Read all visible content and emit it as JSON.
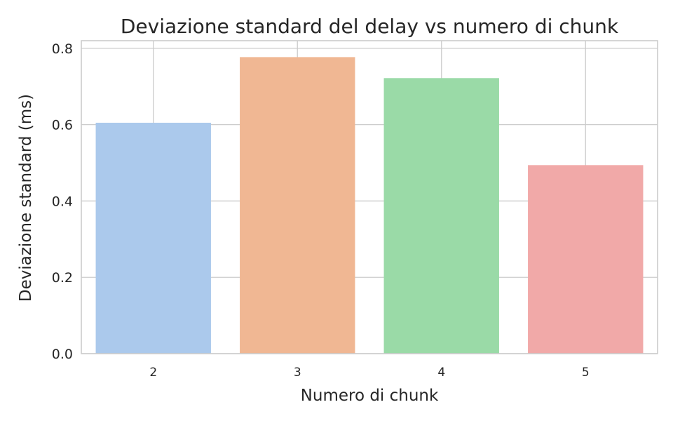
{
  "chart_data": {
    "type": "bar",
    "title": "Deviazione standard del delay vs numero di chunk",
    "xlabel": "Numero di chunk",
    "ylabel": "Deviazione standard (ms)",
    "categories": [
      "2",
      "3",
      "4",
      "5"
    ],
    "values": [
      0.605,
      0.777,
      0.722,
      0.494
    ],
    "colors": [
      "#abc9ec",
      "#f0b793",
      "#9adaa7",
      "#f1a9a8"
    ],
    "ylim": [
      0,
      0.82
    ],
    "yticks": [
      0.0,
      0.2,
      0.4,
      0.6,
      0.8
    ],
    "ytick_labels": [
      "0.0",
      "0.2",
      "0.4",
      "0.6",
      "0.8"
    ],
    "grid": true,
    "legend": "none"
  }
}
